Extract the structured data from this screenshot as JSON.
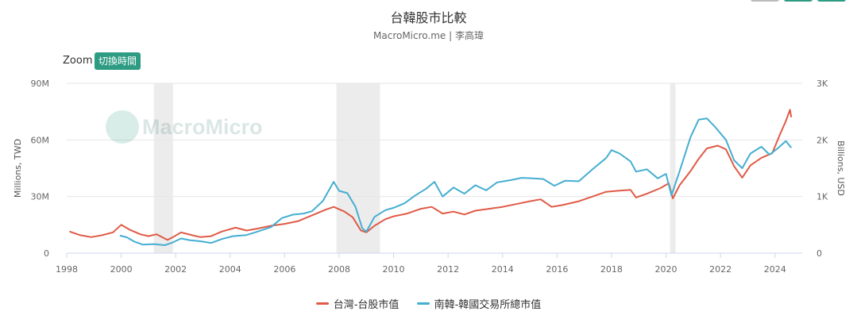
{
  "colors": {
    "taiwan": "#e05a47",
    "korea": "#45aed1",
    "recession": "#ececec",
    "accent": "#2e9c83"
  },
  "header": {
    "title": "台韓股市比較",
    "subtitle": "MacroMicro.me | 李高瑋"
  },
  "zoom": {
    "label": "Zoom",
    "button": "切換時間"
  },
  "watermark": "MacroMicro",
  "legend": [
    {
      "name": "台灣-台股市值"
    },
    {
      "name": "南韓-韓國交易所總市值"
    }
  ],
  "chart_data": {
    "type": "line",
    "title": "台韓股市比較",
    "x_ticks": [
      "1998",
      "2000",
      "2002",
      "2004",
      "2006",
      "2008",
      "2010",
      "2012",
      "2014",
      "2016",
      "2018",
      "2020",
      "2022",
      "2024"
    ],
    "xlim": [
      1998.0,
      2025.0
    ],
    "y_left": {
      "label": "Millions, TWD",
      "ticks": [
        "0",
        "30M",
        "60M",
        "90M"
      ],
      "range": [
        0,
        90000000
      ]
    },
    "y_right": {
      "label": "Billions, USD",
      "ticks": [
        "0",
        "1K",
        "2K",
        "3K"
      ],
      "range": [
        0,
        3000
      ]
    },
    "recessions": [
      [
        2001.2,
        2001.9
      ],
      [
        2007.9,
        2009.5
      ],
      [
        2020.15,
        2020.35
      ]
    ],
    "grid": true,
    "legend_position": "bottom",
    "series": [
      {
        "name": "台灣-台股市值",
        "axis": "left",
        "points": [
          [
            1998.1,
            11500000
          ],
          [
            1998.5,
            9500000
          ],
          [
            1998.9,
            8500000
          ],
          [
            1999.3,
            9500000
          ],
          [
            1999.7,
            11000000
          ],
          [
            2000.0,
            15000000
          ],
          [
            2000.3,
            12500000
          ],
          [
            2000.7,
            10000000
          ],
          [
            2001.0,
            9000000
          ],
          [
            2001.3,
            10000000
          ],
          [
            2001.7,
            7000000
          ],
          [
            2001.9,
            8500000
          ],
          [
            2002.2,
            11000000
          ],
          [
            2002.6,
            9500000
          ],
          [
            2002.9,
            8500000
          ],
          [
            2003.3,
            9000000
          ],
          [
            2003.7,
            11500000
          ],
          [
            2004.2,
            13500000
          ],
          [
            2004.6,
            12000000
          ],
          [
            2005.0,
            13000000
          ],
          [
            2005.5,
            14500000
          ],
          [
            2006.0,
            15500000
          ],
          [
            2006.5,
            17000000
          ],
          [
            2007.0,
            20000000
          ],
          [
            2007.5,
            23000000
          ],
          [
            2007.8,
            24500000
          ],
          [
            2008.2,
            22000000
          ],
          [
            2008.5,
            19000000
          ],
          [
            2008.8,
            12000000
          ],
          [
            2009.0,
            11000000
          ],
          [
            2009.3,
            14500000
          ],
          [
            2009.7,
            18000000
          ],
          [
            2010.0,
            19500000
          ],
          [
            2010.5,
            21000000
          ],
          [
            2011.0,
            23500000
          ],
          [
            2011.4,
            24500000
          ],
          [
            2011.8,
            21000000
          ],
          [
            2012.2,
            22000000
          ],
          [
            2012.6,
            20500000
          ],
          [
            2013.0,
            22500000
          ],
          [
            2013.5,
            23500000
          ],
          [
            2014.0,
            24500000
          ],
          [
            2014.5,
            26000000
          ],
          [
            2015.0,
            27500000
          ],
          [
            2015.4,
            28500000
          ],
          [
            2015.8,
            24500000
          ],
          [
            2016.2,
            25500000
          ],
          [
            2016.8,
            27500000
          ],
          [
            2017.3,
            30000000
          ],
          [
            2017.8,
            32500000
          ],
          [
            2018.2,
            33000000
          ],
          [
            2018.7,
            33500000
          ],
          [
            2018.9,
            29500000
          ],
          [
            2019.3,
            31500000
          ],
          [
            2019.8,
            34500000
          ],
          [
            2020.1,
            37000000
          ],
          [
            2020.25,
            29000000
          ],
          [
            2020.5,
            36000000
          ],
          [
            2020.9,
            43500000
          ],
          [
            2021.2,
            50000000
          ],
          [
            2021.5,
            55500000
          ],
          [
            2021.9,
            57000000
          ],
          [
            2022.2,
            55000000
          ],
          [
            2022.5,
            46000000
          ],
          [
            2022.8,
            40000000
          ],
          [
            2023.1,
            46500000
          ],
          [
            2023.5,
            50500000
          ],
          [
            2023.9,
            53000000
          ],
          [
            2024.2,
            63500000
          ],
          [
            2024.4,
            70000000
          ],
          [
            2024.55,
            76000000
          ],
          [
            2024.6,
            72000000
          ]
        ]
      },
      {
        "name": "南韓-韓國交易所總市值",
        "axis": "right",
        "points": [
          [
            1999.95,
            310
          ],
          [
            2000.2,
            280
          ],
          [
            2000.5,
            200
          ],
          [
            2000.8,
            150
          ],
          [
            2001.2,
            160
          ],
          [
            2001.6,
            140
          ],
          [
            2001.9,
            190
          ],
          [
            2002.2,
            260
          ],
          [
            2002.5,
            230
          ],
          [
            2002.9,
            210
          ],
          [
            2003.3,
            180
          ],
          [
            2003.7,
            250
          ],
          [
            2004.1,
            300
          ],
          [
            2004.6,
            320
          ],
          [
            2005.0,
            380
          ],
          [
            2005.5,
            460
          ],
          [
            2005.9,
            620
          ],
          [
            2006.3,
            680
          ],
          [
            2006.7,
            700
          ],
          [
            2007.0,
            740
          ],
          [
            2007.4,
            920
          ],
          [
            2007.8,
            1260
          ],
          [
            2008.0,
            1100
          ],
          [
            2008.3,
            1060
          ],
          [
            2008.6,
            820
          ],
          [
            2008.85,
            440
          ],
          [
            2009.0,
            380
          ],
          [
            2009.3,
            640
          ],
          [
            2009.7,
            760
          ],
          [
            2010.0,
            800
          ],
          [
            2010.4,
            880
          ],
          [
            2010.8,
            1020
          ],
          [
            2011.2,
            1140
          ],
          [
            2011.5,
            1260
          ],
          [
            2011.8,
            1000
          ],
          [
            2012.2,
            1160
          ],
          [
            2012.6,
            1050
          ],
          [
            2013.0,
            1200
          ],
          [
            2013.4,
            1110
          ],
          [
            2013.8,
            1250
          ],
          [
            2014.3,
            1290
          ],
          [
            2014.7,
            1330
          ],
          [
            2015.1,
            1320
          ],
          [
            2015.5,
            1310
          ],
          [
            2015.9,
            1190
          ],
          [
            2016.3,
            1280
          ],
          [
            2016.8,
            1270
          ],
          [
            2017.3,
            1480
          ],
          [
            2017.8,
            1680
          ],
          [
            2018.0,
            1820
          ],
          [
            2018.3,
            1760
          ],
          [
            2018.7,
            1620
          ],
          [
            2018.9,
            1440
          ],
          [
            2019.3,
            1480
          ],
          [
            2019.7,
            1320
          ],
          [
            2020.0,
            1400
          ],
          [
            2020.2,
            1020
          ],
          [
            2020.5,
            1450
          ],
          [
            2020.9,
            2050
          ],
          [
            2021.2,
            2360
          ],
          [
            2021.5,
            2380
          ],
          [
            2021.8,
            2230
          ],
          [
            2022.2,
            2000
          ],
          [
            2022.5,
            1640
          ],
          [
            2022.8,
            1500
          ],
          [
            2023.1,
            1760
          ],
          [
            2023.5,
            1880
          ],
          [
            2023.8,
            1740
          ],
          [
            2024.1,
            1850
          ],
          [
            2024.4,
            1980
          ],
          [
            2024.6,
            1860
          ]
        ]
      }
    ]
  }
}
